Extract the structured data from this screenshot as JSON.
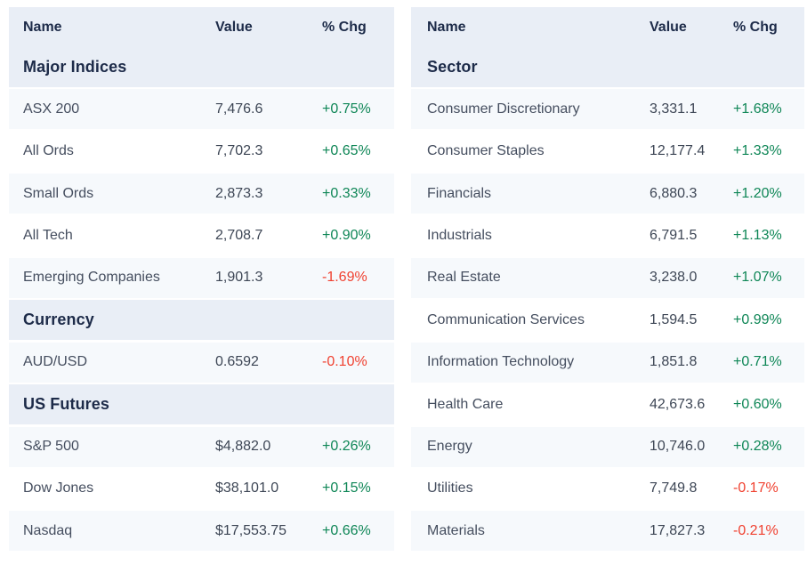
{
  "colors": {
    "header_bg": "#e9eef6",
    "row_alt_bg": "#f6f9fc",
    "row_bg": "#ffffff",
    "heading_text": "#1d2b49",
    "row_text": "#454e5f",
    "positive": "#0e8656",
    "negative": "#f04130"
  },
  "tables": [
    {
      "name": "market-summary",
      "columns": [
        "Name",
        "Value",
        "% Chg"
      ],
      "sections": [
        {
          "title": "Major Indices",
          "rows": [
            {
              "name": "ASX 200",
              "value": "7,476.6",
              "chg": "+0.75%",
              "direction": "up"
            },
            {
              "name": "All Ords",
              "value": "7,702.3",
              "chg": "+0.65%",
              "direction": "up"
            },
            {
              "name": "Small Ords",
              "value": "2,873.3",
              "chg": "+0.33%",
              "direction": "up"
            },
            {
              "name": "All Tech",
              "value": "2,708.7",
              "chg": "+0.90%",
              "direction": "up"
            },
            {
              "name": "Emerging Companies",
              "value": "1,901.3",
              "chg": "-1.69%",
              "direction": "down"
            }
          ]
        },
        {
          "title": "Currency",
          "rows": [
            {
              "name": "AUD/USD",
              "value": "0.6592",
              "chg": "-0.10%",
              "direction": "down"
            }
          ]
        },
        {
          "title": "US Futures",
          "rows": [
            {
              "name": "S&P 500",
              "value": "$4,882.0",
              "chg": "+0.26%",
              "direction": "up"
            },
            {
              "name": "Dow Jones",
              "value": "$38,101.0",
              "chg": "+0.15%",
              "direction": "up"
            },
            {
              "name": "Nasdaq",
              "value": "$17,553.75",
              "chg": "+0.66%",
              "direction": "up"
            }
          ]
        }
      ]
    },
    {
      "name": "sector-summary",
      "columns": [
        "Name",
        "Value",
        "% Chg"
      ],
      "sections": [
        {
          "title": "Sector",
          "rows": [
            {
              "name": "Consumer Discretionary",
              "value": "3,331.1",
              "chg": "+1.68%",
              "direction": "up"
            },
            {
              "name": "Consumer Staples",
              "value": "12,177.4",
              "chg": "+1.33%",
              "direction": "up"
            },
            {
              "name": "Financials",
              "value": "6,880.3",
              "chg": "+1.20%",
              "direction": "up"
            },
            {
              "name": "Industrials",
              "value": "6,791.5",
              "chg": "+1.13%",
              "direction": "up"
            },
            {
              "name": "Real Estate",
              "value": "3,238.0",
              "chg": "+1.07%",
              "direction": "up"
            },
            {
              "name": "Communication Services",
              "value": "1,594.5",
              "chg": "+0.99%",
              "direction": "up"
            },
            {
              "name": "Information Technology",
              "value": "1,851.8",
              "chg": "+0.71%",
              "direction": "up"
            },
            {
              "name": "Health Care",
              "value": "42,673.6",
              "chg": "+0.60%",
              "direction": "up"
            },
            {
              "name": "Energy",
              "value": "10,746.0",
              "chg": "+0.28%",
              "direction": "up"
            },
            {
              "name": "Utilities",
              "value": "7,749.8",
              "chg": "-0.17%",
              "direction": "down"
            },
            {
              "name": "Materials",
              "value": "17,827.3",
              "chg": "-0.21%",
              "direction": "down"
            }
          ]
        }
      ]
    }
  ]
}
